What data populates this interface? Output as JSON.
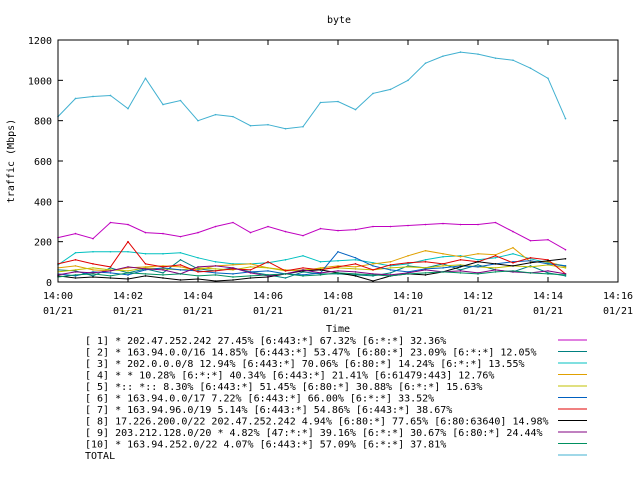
{
  "chart_data": {
    "type": "line",
    "title": "byte",
    "xlabel": "Time",
    "ylabel": "traffic (Mbps)",
    "ylim": [
      0,
      1200
    ],
    "yticks": [
      "0",
      "200",
      "400",
      "600",
      "800",
      "1000",
      "1200"
    ],
    "xlim": [
      "14:00",
      "14:16"
    ],
    "xticks": [
      {
        "time": "14:00",
        "date": "01/21"
      },
      {
        "time": "14:02",
        "date": "01/21"
      },
      {
        "time": "14:04",
        "date": "01/21"
      },
      {
        "time": "14:06",
        "date": "01/21"
      },
      {
        "time": "14:08",
        "date": "01/21"
      },
      {
        "time": "14:10",
        "date": "01/21"
      },
      {
        "time": "14:12",
        "date": "01/21"
      },
      {
        "time": "14:14",
        "date": "01/21"
      },
      {
        "time": "14:16",
        "date": "01/21"
      }
    ],
    "x": [
      "14:00",
      "14:00:30",
      "14:01",
      "14:01:30",
      "14:02",
      "14:02:30",
      "14:03",
      "14:03:30",
      "14:04",
      "14:04:30",
      "14:05",
      "14:05:30",
      "14:06",
      "14:06:30",
      "14:07",
      "14:07:30",
      "14:08",
      "14:08:30",
      "14:09",
      "14:09:30",
      "14:10",
      "14:10:30",
      "14:11",
      "14:11:30",
      "14:12",
      "14:12:30",
      "14:13",
      "14:13:30",
      "14:14",
      "14:14:30"
    ],
    "grid": false,
    "legend_placement": "below",
    "series": [
      {
        "name": "[ 1] * 202.47.252.242 27.45%  [6:443:*] 67.32% [6:*:*] 32.36%",
        "color": "#c000c0",
        "values": [
          220,
          240,
          215,
          295,
          285,
          245,
          240,
          225,
          245,
          275,
          295,
          245,
          275,
          250,
          230,
          265,
          255,
          260,
          275,
          275,
          280,
          285,
          290,
          285,
          285,
          295,
          250,
          205,
          210,
          160
        ]
      },
      {
        "name": "[ 2] * 163.94.0.0/16 14.85%  [6:443:*] 53.47% [6:80:*] 23.09% [6:*:*] 12.05%",
        "color": "#008080",
        "values": [
          60,
          55,
          30,
          70,
          45,
          65,
          45,
          110,
          65,
          55,
          70,
          50,
          35,
          20,
          50,
          40,
          40,
          35,
          30,
          45,
          80,
          70,
          90,
          60,
          85,
          60,
          50,
          80,
          45,
          30
        ]
      },
      {
        "name": "[ 3] * 202.0.0.0/8 12.94%  [6:443:*] 70.06% [6:80:*] 14.24% [6:*:*] 13.55%",
        "color": "#00c0c0",
        "values": [
          85,
          145,
          150,
          150,
          150,
          140,
          140,
          145,
          120,
          100,
          90,
          90,
          95,
          110,
          130,
          100,
          105,
          110,
          95,
          80,
          90,
          110,
          125,
          130,
          110,
          120,
          140,
          115,
          95,
          80
        ]
      },
      {
        "name": "[ 4] * * 10.28%  [6:*:*] 40.34% [6:443:*] 21.41% [6:61479:443] 12.76%",
        "color": "#e0a000",
        "values": [
          70,
          80,
          60,
          55,
          70,
          75,
          80,
          75,
          60,
          80,
          85,
          90,
          70,
          60,
          55,
          70,
          80,
          75,
          90,
          100,
          130,
          155,
          140,
          125,
          140,
          135,
          170,
          100,
          100,
          75
        ]
      },
      {
        "name": "[ 5] *:: *:: 8.30%  [6:443:*] 51.45% [6:80:*] 30.88% [6:*:*] 15.63%",
        "color": "#c0c000",
        "values": [
          50,
          60,
          70,
          60,
          55,
          70,
          65,
          60,
          70,
          65,
          60,
          75,
          70,
          55,
          60,
          65,
          70,
          65,
          60,
          70,
          75,
          70,
          80,
          85,
          75,
          70,
          80,
          75,
          85,
          70
        ]
      },
      {
        "name": "[ 6] * 163.94.0.0/17 7.22%  [6:443:*] 66.00% [6:*:*] 33.52%",
        "color": "#0060c0",
        "values": [
          40,
          30,
          50,
          45,
          35,
          60,
          70,
          60,
          55,
          45,
          40,
          50,
          55,
          40,
          35,
          45,
          150,
          120,
          80,
          60,
          50,
          65,
          70,
          80,
          75,
          90,
          100,
          105,
          90,
          80
        ]
      },
      {
        "name": "[ 7] * 163.94.96.0/19 5.14%  [6:443:*] 54.86% [6:443:*] 38.67%",
        "color": "#e00000",
        "values": [
          90,
          110,
          90,
          75,
          200,
          90,
          75,
          85,
          50,
          55,
          65,
          60,
          100,
          55,
          70,
          60,
          75,
          90,
          60,
          85,
          95,
          100,
          90,
          110,
          100,
          130,
          95,
          120,
          110,
          40
        ]
      },
      {
        "name": "[ 8] 17.226.200.0/22 202.47.252.242 4.94%  [6:80:*] 77.65% [6:80:63640] 14.98%",
        "color": "#000000",
        "values": [
          30,
          20,
          25,
          20,
          15,
          30,
          20,
          10,
          15,
          5,
          10,
          20,
          25,
          40,
          55,
          60,
          45,
          30,
          5,
          30,
          40,
          35,
          50,
          75,
          100,
          90,
          80,
          95,
          105,
          115
        ]
      },
      {
        "name": "[ 9] 203.212.128.0/20 * 4.82%  [47:*:*] 39.16% [6:*:*] 30.67% [6:80:*] 24.44%",
        "color": "#800080",
        "values": [
          35,
          50,
          45,
          55,
          75,
          65,
          60,
          40,
          75,
          80,
          70,
          45,
          30,
          40,
          60,
          45,
          55,
          50,
          40,
          35,
          45,
          60,
          50,
          55,
          45,
          60,
          50,
          45,
          55,
          40
        ]
      },
      {
        "name": "[10] * 163.94.252.0/22 4.07%  [6:443:*] 57.09% [6:*:*] 37.81%",
        "color": "#009060",
        "values": [
          25,
          35,
          40,
          30,
          45,
          40,
          35,
          40,
          30,
          35,
          25,
          30,
          35,
          40,
          30,
          35,
          45,
          40,
          35,
          30,
          40,
          45,
          50,
          45,
          40,
          50,
          55,
          45,
          40,
          35
        ]
      },
      {
        "name": "TOTAL",
        "color": "#40b0d0",
        "values": [
          820,
          910,
          920,
          925,
          860,
          1010,
          880,
          900,
          800,
          830,
          820,
          775,
          780,
          760,
          770,
          890,
          895,
          855,
          935,
          955,
          1000,
          1085,
          1120,
          1140,
          1130,
          1110,
          1100,
          1060,
          1010,
          810
        ]
      }
    ]
  }
}
